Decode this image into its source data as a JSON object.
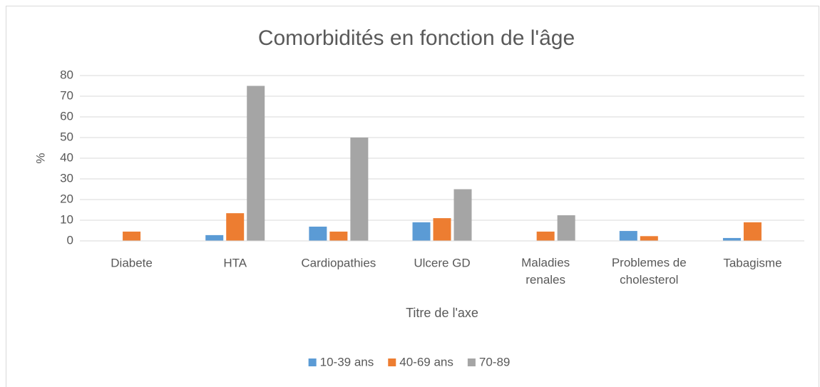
{
  "chart_data": {
    "type": "bar",
    "title": "Comorbidités en fonction de l'âge",
    "y_label": "%",
    "x_label": "Titre de l'axe",
    "categories": [
      "Diabete",
      "HTA",
      "Cardiopathies",
      "Ulcere GD",
      "Maladies renales",
      "Problemes de cholesterol",
      "Tabagisme"
    ],
    "series": [
      {
        "name": "10-39 ans",
        "color": "#5b9bd5",
        "values": [
          0,
          2.8,
          6.9,
          9,
          0,
          4.8,
          1.4
        ]
      },
      {
        "name": "40-69 ans",
        "color": "#ed7d31",
        "values": [
          4.5,
          13.4,
          4.5,
          11,
          4.5,
          2.3,
          9
        ]
      },
      {
        "name": "70-89",
        "color": "#a5a5a5",
        "values": [
          0,
          75,
          50,
          25,
          12.4,
          0,
          0
        ]
      }
    ],
    "ylim": [
      0,
      80
    ],
    "yticks": [
      0,
      10,
      20,
      30,
      40,
      50,
      60,
      70,
      80
    ],
    "grid": true,
    "legend": "bottom"
  }
}
